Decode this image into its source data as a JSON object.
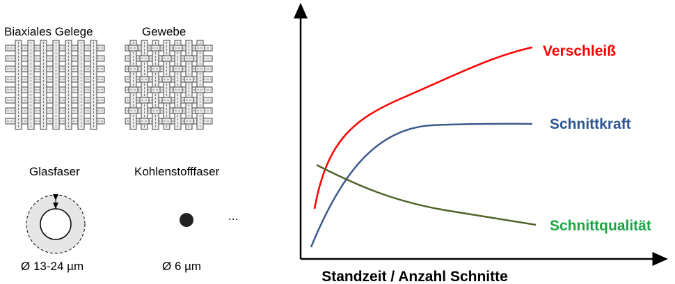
{
  "textiles": {
    "biaxial": "Biaxiales Gelege",
    "woven": "Gewebe"
  },
  "fibers": {
    "glass": {
      "name": "Glasfaser",
      "diameter": "Ø 13-24 µm"
    },
    "carbon": {
      "name": "Kohlenstofffaser",
      "diameter": "Ø 6 µm"
    },
    "more": "..."
  },
  "chart": {
    "x_label": "Standzeit / Anzahl Schnitte",
    "curves": [
      {
        "label": "Verschleiß"
      },
      {
        "label": "Schnittkraft"
      },
      {
        "label": "Schnittqualität"
      }
    ]
  }
}
